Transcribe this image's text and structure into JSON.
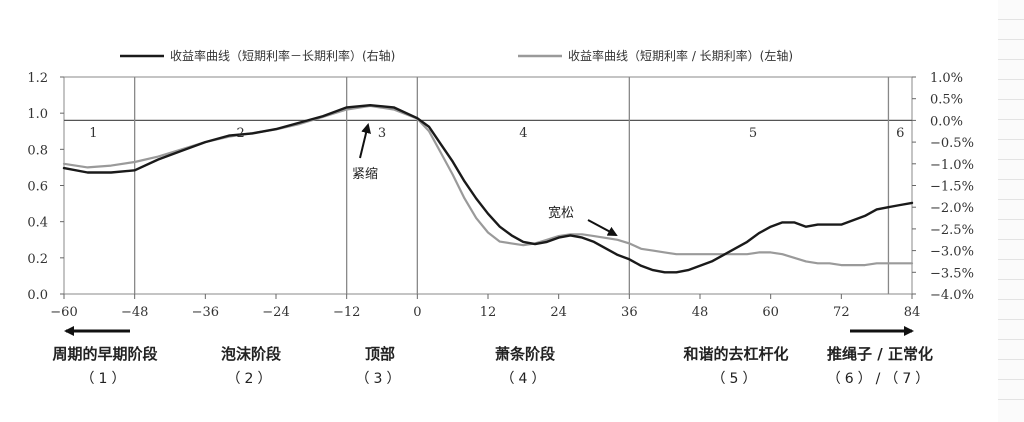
{
  "chart_data": {
    "type": "line",
    "legend": {
      "placement": "top",
      "series_dark": "收益率曲线（短期利率－长期利率）(右轴)",
      "series_light": "收益率曲线（短期利率 / 长期利率）(左轴)"
    },
    "x_axis": {
      "range": [
        -60,
        84
      ],
      "ticks": [
        -60,
        -48,
        -36,
        -24,
        -12,
        0,
        12,
        24,
        36,
        48,
        60,
        72,
        84
      ],
      "tick_labels": [
        "−60",
        "−48",
        "−36",
        "−24",
        "−12",
        "0",
        "12",
        "24",
        "36",
        "48",
        "60",
        "72",
        "84"
      ]
    },
    "y_left": {
      "range": [
        0.0,
        1.2
      ],
      "ticks": [
        0.0,
        0.2,
        0.4,
        0.6,
        0.8,
        1.0,
        1.2
      ],
      "tick_labels": [
        "0.0",
        "0.2",
        "0.4",
        "0.6",
        "0.8",
        "1.0",
        "1.2"
      ]
    },
    "y_right": {
      "range": [
        -4.0,
        1.0
      ],
      "ticks": [
        1.0,
        0.5,
        0.0,
        -0.5,
        -1.0,
        -1.5,
        -2.0,
        -2.5,
        -3.0,
        -3.5,
        -4.0
      ],
      "tick_labels": [
        "1.0%",
        "0.5%",
        "0.0%",
        "−0.5%",
        "−1.0%",
        "−1.5%",
        "−2.0%",
        "−2.5%",
        "−3.0%",
        "−3.5%",
        "−4.0%"
      ],
      "zero_line": 0.0
    },
    "phase_boundaries": [
      -48,
      -12,
      0,
      36,
      80
    ],
    "phase_numbers": [
      {
        "label": "1",
        "x": -55
      },
      {
        "label": "2",
        "x": -30
      },
      {
        "label": "3",
        "x": -6
      },
      {
        "label": "4",
        "x": 18
      },
      {
        "label": "5",
        "x": 57
      },
      {
        "label": "6",
        "x": 82
      }
    ],
    "series": [
      {
        "key": "dark",
        "axis": "right",
        "color": "#1a1a1a",
        "x": [
          -60,
          -56,
          -52,
          -48,
          -44,
          -40,
          -36,
          -32,
          -28,
          -24,
          -20,
          -16,
          -12,
          -8,
          -4,
          0,
          2,
          4,
          6,
          8,
          10,
          12,
          14,
          16,
          18,
          20,
          22,
          24,
          26,
          28,
          30,
          32,
          34,
          36,
          38,
          40,
          42,
          44,
          46,
          48,
          50,
          52,
          54,
          56,
          58,
          60,
          62,
          64,
          66,
          68,
          70,
          72,
          74,
          76,
          78,
          80,
          82,
          84
        ],
        "y": [
          -1.1,
          -1.2,
          -1.2,
          -1.15,
          -0.9,
          -0.7,
          -0.5,
          -0.35,
          -0.3,
          -0.2,
          -0.05,
          0.1,
          0.3,
          0.35,
          0.3,
          0.05,
          -0.15,
          -0.55,
          -0.95,
          -1.4,
          -1.8,
          -2.15,
          -2.45,
          -2.65,
          -2.8,
          -2.85,
          -2.8,
          -2.7,
          -2.65,
          -2.7,
          -2.8,
          -2.95,
          -3.1,
          -3.2,
          -3.35,
          -3.45,
          -3.5,
          -3.5,
          -3.45,
          -3.35,
          -3.25,
          -3.1,
          -2.95,
          -2.8,
          -2.6,
          -2.45,
          -2.35,
          -2.35,
          -2.45,
          -2.4,
          -2.4,
          -2.4,
          -2.3,
          -2.2,
          -2.05,
          -2.0,
          -1.95,
          -1.9
        ]
      },
      {
        "key": "light",
        "axis": "left",
        "color": "#9a9a9a",
        "x": [
          -60,
          -56,
          -52,
          -48,
          -44,
          -40,
          -36,
          -32,
          -28,
          -24,
          -20,
          -16,
          -12,
          -8,
          -4,
          0,
          2,
          4,
          6,
          8,
          10,
          12,
          14,
          16,
          18,
          20,
          22,
          24,
          26,
          28,
          30,
          32,
          34,
          36,
          38,
          40,
          42,
          44,
          46,
          48,
          50,
          52,
          54,
          56,
          58,
          60,
          62,
          64,
          66,
          68,
          70,
          72,
          74,
          76,
          78,
          80,
          82,
          84
        ],
        "y": [
          0.72,
          0.7,
          0.71,
          0.73,
          0.76,
          0.8,
          0.84,
          0.87,
          0.89,
          0.91,
          0.94,
          0.98,
          1.02,
          1.04,
          1.02,
          0.97,
          0.9,
          0.78,
          0.66,
          0.53,
          0.42,
          0.34,
          0.29,
          0.28,
          0.27,
          0.28,
          0.3,
          0.32,
          0.33,
          0.33,
          0.32,
          0.31,
          0.3,
          0.28,
          0.25,
          0.24,
          0.23,
          0.22,
          0.22,
          0.22,
          0.22,
          0.22,
          0.22,
          0.22,
          0.23,
          0.23,
          0.22,
          0.2,
          0.18,
          0.17,
          0.17,
          0.16,
          0.16,
          0.16,
          0.17,
          0.17,
          0.17,
          0.17
        ]
      }
    ]
  },
  "annotations": {
    "tight": "紧缩",
    "loose": "宽松"
  },
  "phases": [
    {
      "name": "周期的早期阶段",
      "index": "（1）"
    },
    {
      "name": "泡沫阶段",
      "index": "（2）"
    },
    {
      "name": "顶部",
      "index": "（3）"
    },
    {
      "name": "萧条阶段",
      "index": "（4）"
    },
    {
      "name": "和谐的去杠杆化",
      "index": "（5）"
    },
    {
      "name": "推绳子 / 正常化",
      "index": "（6）/（7）"
    }
  ]
}
